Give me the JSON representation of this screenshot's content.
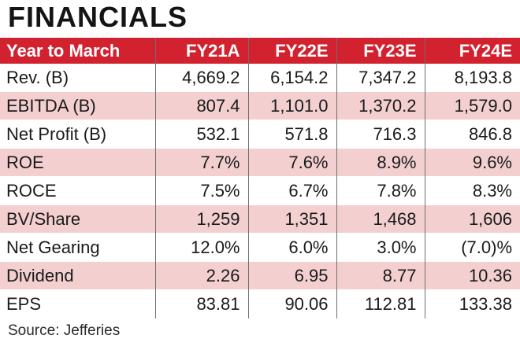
{
  "title": "FINANCIALS",
  "table": {
    "headers": [
      "Year to March",
      "FY21A",
      "FY22E",
      "FY23E",
      "FY24E"
    ],
    "rows": [
      {
        "label": "Rev. (B)",
        "values": [
          "4,669.2",
          "6,154.2",
          "7,347.2",
          "8,193.8"
        ]
      },
      {
        "label": "EBITDA (B)",
        "values": [
          "807.4",
          "1,101.0",
          "1,370.2",
          "1,579.0"
        ]
      },
      {
        "label": "Net Profit (B)",
        "values": [
          "532.1",
          "571.8",
          "716.3",
          "846.8"
        ]
      },
      {
        "label": "ROE",
        "values": [
          "7.7%",
          "7.6%",
          "8.9%",
          "9.6%"
        ]
      },
      {
        "label": "ROCE",
        "values": [
          "7.5%",
          "6.7%",
          "7.8%",
          "8.3%"
        ]
      },
      {
        "label": "BV/Share",
        "values": [
          "1,259",
          "1,351",
          "1,468",
          "1,606"
        ]
      },
      {
        "label": "Net Gearing",
        "values": [
          "12.0%",
          "6.0%",
          "3.0%",
          "(7.0)%"
        ]
      },
      {
        "label": "Dividend",
        "values": [
          "2.26",
          "6.95",
          "8.77",
          "10.36"
        ]
      },
      {
        "label": "EPS",
        "values": [
          "83.81",
          "90.06",
          "112.81",
          "133.38"
        ]
      }
    ]
  },
  "source": "Source: Jefferies",
  "colors": {
    "header_bg": "#d3222f",
    "band_bg": "#f3cfd0"
  }
}
